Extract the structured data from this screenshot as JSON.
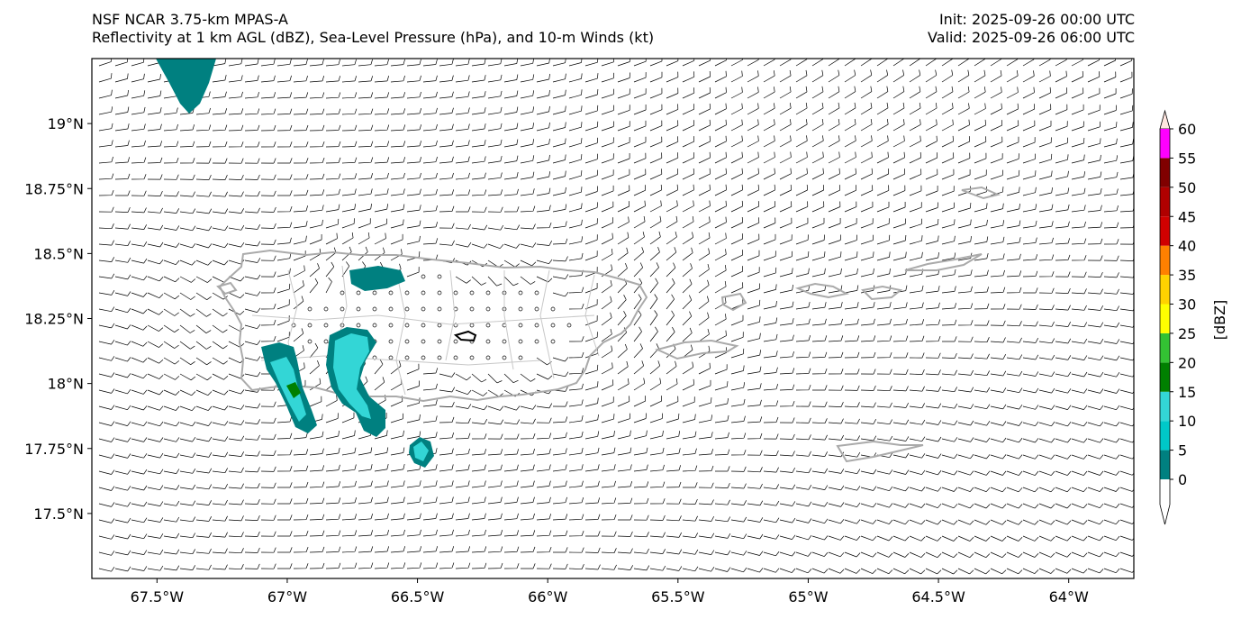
{
  "header": {
    "title_left_line1": "NSF NCAR 3.75-km MPAS-A",
    "title_left_line2": "Reflectivity at 1 km AGL (dBZ), Sea-Level Pressure (hPa), and 10-m Winds (kt)",
    "title_right_line1": "Init: 2025-09-26 00:00 UTC",
    "title_right_line2": "Valid: 2025-09-26 06:00 UTC"
  },
  "map": {
    "lon_range": [
      -67.75,
      -63.75
    ],
    "lat_range": [
      17.25,
      19.25
    ],
    "x_ticks": [
      {
        "value": -67.5,
        "label": "67.5°W"
      },
      {
        "value": -67.0,
        "label": "67°W"
      },
      {
        "value": -66.5,
        "label": "66.5°W"
      },
      {
        "value": -66.0,
        "label": "66°W"
      },
      {
        "value": -65.5,
        "label": "65.5°W"
      },
      {
        "value": -65.0,
        "label": "65°W"
      },
      {
        "value": -64.5,
        "label": "64.5°W"
      },
      {
        "value": -64.0,
        "label": "64°W"
      }
    ],
    "y_ticks": [
      {
        "value": 19.0,
        "label": "19°N"
      },
      {
        "value": 18.75,
        "label": "18.75°N"
      },
      {
        "value": 18.5,
        "label": "18.5°N"
      },
      {
        "value": 18.25,
        "label": "18.25°N"
      },
      {
        "value": 18.0,
        "label": "18°N"
      },
      {
        "value": 17.75,
        "label": "17.75°N"
      },
      {
        "value": 17.5,
        "label": "17.5°N"
      }
    ],
    "wind_barbs": "10-m winds (kt)"
  },
  "colorbar": {
    "unit_label": "[dBZ]",
    "levels": [
      {
        "value": 0,
        "color": "#008080"
      },
      {
        "value": 5,
        "color": "#00c8c8"
      },
      {
        "value": 10,
        "color": "#33d6d6"
      },
      {
        "value": 15,
        "color": "#008000"
      },
      {
        "value": 20,
        "color": "#33c233"
      },
      {
        "value": 25,
        "color": "#ffff00"
      },
      {
        "value": 30,
        "color": "#ffd200"
      },
      {
        "value": 35,
        "color": "#ff8000"
      },
      {
        "value": 40,
        "color": "#d00000"
      },
      {
        "value": 45,
        "color": "#b00000"
      },
      {
        "value": 50,
        "color": "#800000"
      },
      {
        "value": 55,
        "color": "#ff00ff"
      },
      {
        "value": 60,
        "color": "#ffe6e0"
      }
    ]
  }
}
